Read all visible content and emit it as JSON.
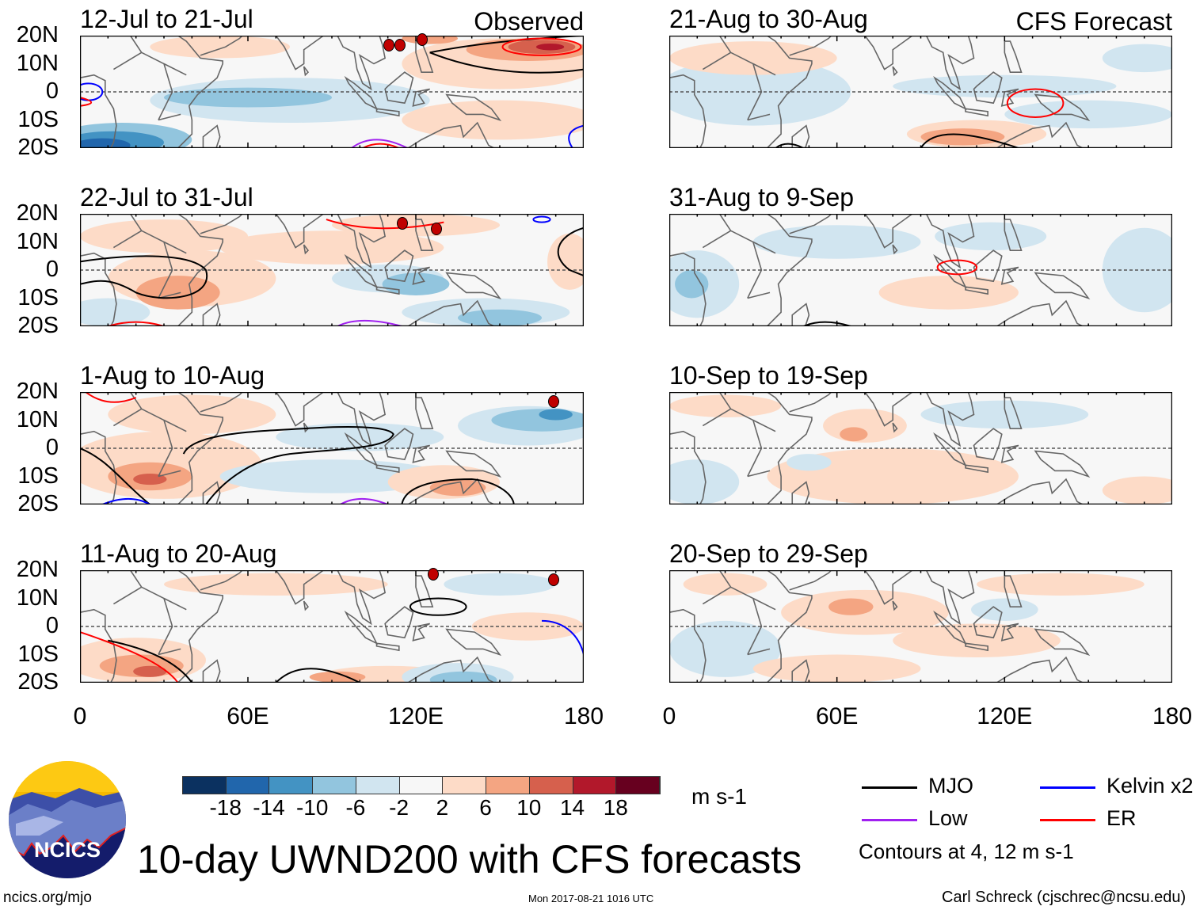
{
  "title": "10-day UWND200 with CFS forecasts",
  "panels": [
    {
      "title": "12-Jul to 21-Jul",
      "tag": "Observed"
    },
    {
      "title": "22-Jul to 31-Jul",
      "tag": ""
    },
    {
      "title": "1-Aug to 10-Aug",
      "tag": ""
    },
    {
      "title": "11-Aug to 20-Aug",
      "tag": ""
    },
    {
      "title": "21-Aug to 30-Aug",
      "tag": "CFS Forecast"
    },
    {
      "title": "31-Aug to 9-Sep",
      "tag": ""
    },
    {
      "title": "10-Sep to 19-Sep",
      "tag": ""
    },
    {
      "title": "20-Sep to 29-Sep",
      "tag": ""
    }
  ],
  "lat_labels": [
    "20N",
    "10N",
    "0",
    "10S",
    "20S"
  ],
  "lon_labels": [
    "0",
    "60E",
    "120E",
    "180"
  ],
  "colorbar": {
    "labels": [
      "-18",
      "-14",
      "-10",
      "-6",
      "-2",
      "2",
      "6",
      "10",
      "14",
      "18"
    ],
    "colors": [
      "#0b3160",
      "#2166ac",
      "#4393c3",
      "#92c5de",
      "#d1e5f0",
      "#f7f7f7",
      "#fddbc7",
      "#f4a582",
      "#d6604d",
      "#b2182b",
      "#67001f"
    ],
    "unit": "m s-1"
  },
  "legend": [
    {
      "label": "MJO",
      "color": "#000000"
    },
    {
      "label": "Kelvin x2",
      "color": "#0000ff"
    },
    {
      "label": "Low",
      "color": "#a020f0"
    },
    {
      "label": "ER",
      "color": "#ff0000"
    }
  ],
  "contour_note": "Contours at 4, 12 m s-1",
  "logo_text": "NCICS",
  "footer": {
    "url": "ncics.org/mjo",
    "timestamp": "Mon 2017-08-21 1016 UTC",
    "author": "Carl Schreck (cjschrec@ncsu.edu)"
  }
}
